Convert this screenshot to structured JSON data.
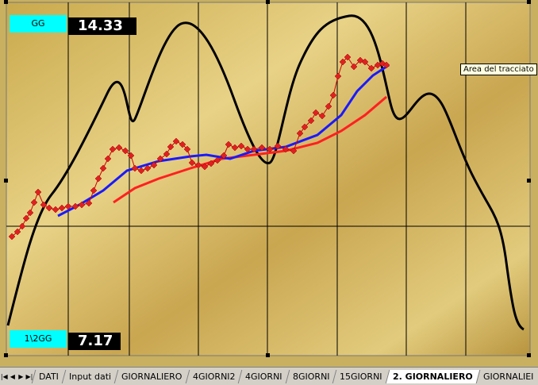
{
  "labels": [
    {
      "name": "GG",
      "value": "14.33"
    },
    {
      "name": "1\\2GG",
      "value": "7.17"
    }
  ],
  "tooltip": "Area del tracciato",
  "sheet_tabs": [
    {
      "label": "DATI",
      "active": false
    },
    {
      "label": "Input dati",
      "active": false
    },
    {
      "label": "GIORNALIERO",
      "active": false
    },
    {
      "label": "4GIORNI2",
      "active": false
    },
    {
      "label": "4GIORNI",
      "active": false
    },
    {
      "label": "8GIORNI",
      "active": false
    },
    {
      "label": "15GIORNI",
      "active": false
    },
    {
      "label": "2. GIORNALIERO",
      "active": true
    },
    {
      "label": "GIORNALIEI",
      "active": false
    }
  ]
}
